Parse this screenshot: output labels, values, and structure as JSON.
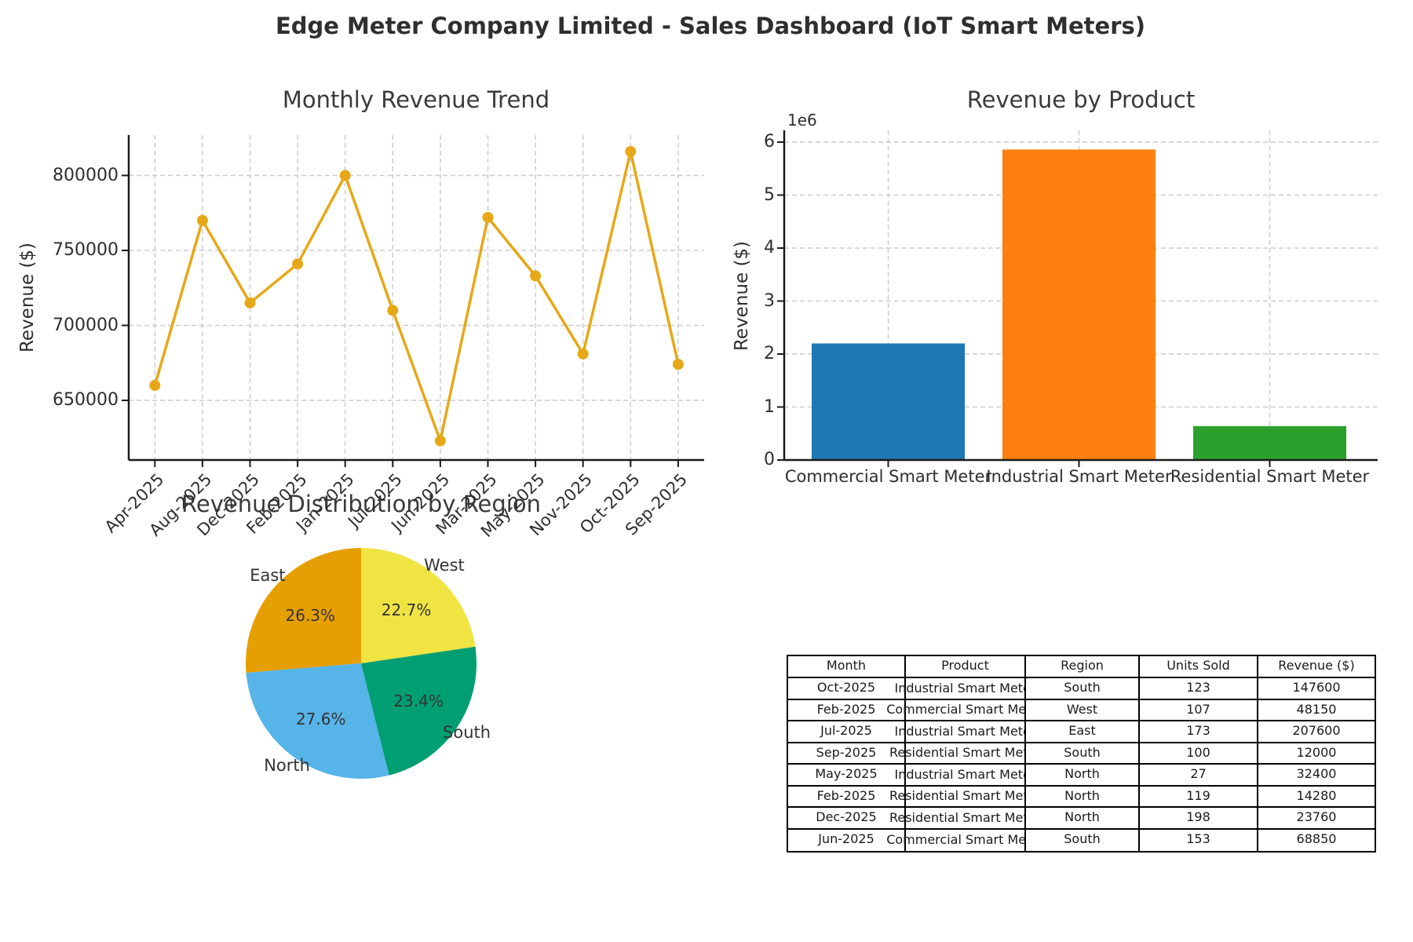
{
  "dashboard": {
    "title": "Edge Meter Company Limited - Sales Dashboard (IoT Smart Meters)"
  },
  "chart_data": [
    {
      "type": "line",
      "title": "Monthly Revenue Trend",
      "xlabel": "",
      "ylabel": "Revenue ($)",
      "categories": [
        "Apr-2025",
        "Aug-2025",
        "Dec-2025",
        "Feb-2025",
        "Jan-2025",
        "Jul-2025",
        "Jun-2025",
        "Mar-2025",
        "May-2025",
        "Nov-2025",
        "Oct-2025",
        "Sep-2025"
      ],
      "values": [
        660000,
        770000,
        715000,
        741000,
        800000,
        710000,
        623000,
        772000,
        733000,
        681000,
        816000,
        674000
      ],
      "yticks": [
        650000,
        700000,
        750000,
        800000
      ],
      "ylim": [
        613000,
        827000
      ],
      "grid": true,
      "line_color": "#E6A817",
      "marker": "circle"
    },
    {
      "type": "bar",
      "title": "Revenue by Product",
      "xlabel": "",
      "ylabel": "Revenue ($)",
      "offset_label": "1e6",
      "categories": [
        "Commercial Smart Meter",
        "Industrial Smart Meter",
        "Residential Smart Meter"
      ],
      "values": [
        2200000,
        5860000,
        640000
      ],
      "yticks": [
        0,
        1,
        2,
        3,
        4,
        5,
        6
      ],
      "ytick_scale": 1000000,
      "ylim": [
        0,
        6200000
      ],
      "grid": true,
      "colors": [
        "#1F77B4",
        "#FF7F0E",
        "#2CA02C"
      ]
    },
    {
      "type": "pie",
      "title": "Revenue Distribution by Region",
      "labels": [
        "East",
        "North",
        "South",
        "West"
      ],
      "values_pct": [
        26.3,
        27.6,
        23.4,
        22.7
      ],
      "colors": [
        "#E69F00",
        "#56B4E9",
        "#009E73",
        "#F0E442"
      ],
      "start_angle": 90,
      "direction": "counterclockwise"
    },
    {
      "type": "table",
      "columns": [
        "Month",
        "Product",
        "Region",
        "Units Sold",
        "Revenue ($)"
      ],
      "rows": [
        {
          "month": "Oct-2025",
          "product": "Industrial Smart Meter",
          "region": "South",
          "units": "123",
          "revenue": "147600"
        },
        {
          "month": "Feb-2025",
          "product": "Commercial Smart Meter",
          "region": "West",
          "units": "107",
          "revenue": "48150"
        },
        {
          "month": "Jul-2025",
          "product": "Industrial Smart Meter",
          "region": "East",
          "units": "173",
          "revenue": "207600"
        },
        {
          "month": "Sep-2025",
          "product": "Residential Smart Meter",
          "region": "South",
          "units": "100",
          "revenue": "12000"
        },
        {
          "month": "May-2025",
          "product": "Industrial Smart Meter",
          "region": "North",
          "units": "27",
          "revenue": "32400"
        },
        {
          "month": "Feb-2025",
          "product": "Residential Smart Meter",
          "region": "North",
          "units": "119",
          "revenue": "14280"
        },
        {
          "month": "Dec-2025",
          "product": "Residential Smart Meter",
          "region": "North",
          "units": "198",
          "revenue": "23760"
        },
        {
          "month": "Jun-2025",
          "product": "Commercial Smart Meter",
          "region": "South",
          "units": "153",
          "revenue": "68850"
        }
      ]
    }
  ]
}
